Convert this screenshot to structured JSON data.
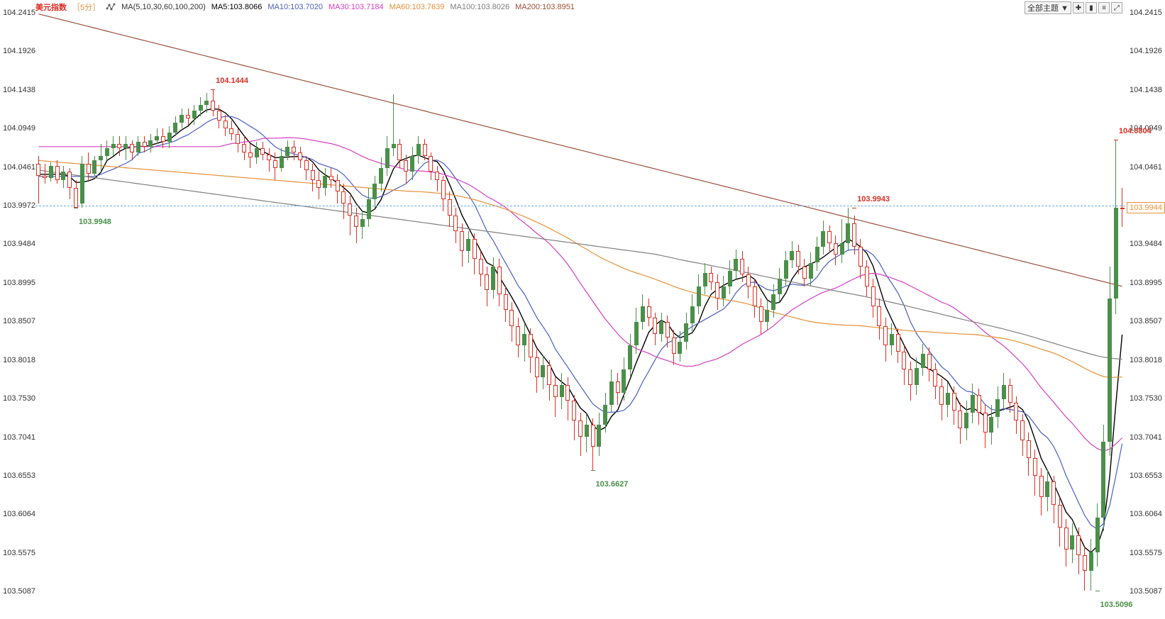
{
  "header": {
    "symbol": "美元指数",
    "timeframe": "［5分］",
    "indicator_set": "MA(5,10,30,60,100,200)",
    "ma5_label": "MA5:103.8066",
    "ma10_label": "MA10:103.7020",
    "ma30_label": "MA30:103.7184",
    "ma60_label": "MA60:103.7639",
    "ma100_label": "MA100:103.8026",
    "ma200_label": "MA200:103.8951"
  },
  "controls": {
    "theme_dropdown": "全部主题 ▼"
  },
  "colors": {
    "ma5": "#000000",
    "ma10": "#4a5fbf",
    "ma30": "#d63fc2",
    "ma60": "#e69138",
    "ma100": "#808080",
    "ma200": "#9b4f3a",
    "up": "#4a8f4a",
    "down": "#d93025",
    "current_dash": "#6aa8d8",
    "current_box_border": "#e69138",
    "current_box_text": "#e69138",
    "bg": "#ffffff"
  },
  "chart": {
    "type": "candlestick",
    "ylim": [
      103.49,
      104.2415
    ],
    "yticks": [
      104.2415,
      104.1926,
      104.1438,
      104.0949,
      104.0461,
      103.9972,
      103.9484,
      103.8995,
      103.8507,
      103.8018,
      103.753,
      103.7041,
      103.6553,
      103.6064,
      103.5575,
      103.5087
    ],
    "current_price": 103.9944,
    "current_dash_y": 103.9972,
    "n_bars": 175,
    "annotations": [
      {
        "text": "104.1444",
        "value": 104.1444,
        "x_index": 28,
        "cls": "red",
        "dy": -18
      },
      {
        "text": "103.9948",
        "value": 103.9948,
        "x_index": 6,
        "cls": "green",
        "dy": 14
      },
      {
        "text": "103.6627",
        "value": 103.6627,
        "x_index": 89,
        "cls": "green",
        "dy": 14
      },
      {
        "text": "103.9943",
        "value": 103.9943,
        "x_index": 131,
        "cls": "red",
        "dy": -18
      },
      {
        "text": "104.0804",
        "value": 104.0804,
        "x_index": 173,
        "cls": "red",
        "dy": -18
      },
      {
        "text": "103.5096",
        "value": 103.5096,
        "x_index": 170,
        "cls": "green",
        "dy": 14
      }
    ]
  },
  "candles": [
    [
      104.05,
      104.035,
      104.06,
      104.0
    ],
    [
      104.035,
      104.032,
      104.05,
      104.025
    ],
    [
      104.032,
      104.048,
      104.052,
      104.028
    ],
    [
      104.048,
      104.03,
      104.055,
      104.025
    ],
    [
      104.03,
      104.04,
      104.048,
      104.02
    ],
    [
      104.04,
      104.02,
      104.045,
      104.005
    ],
    [
      104.02,
      103.995,
      104.03,
      103.9948
    ],
    [
      104.0,
      104.05,
      104.06,
      103.995
    ],
    [
      104.05,
      104.038,
      104.065,
      104.03
    ],
    [
      104.038,
      104.055,
      104.06,
      104.035
    ],
    [
      104.055,
      104.06,
      104.075,
      104.04
    ],
    [
      104.06,
      104.07,
      104.08,
      104.055
    ],
    [
      104.07,
      104.075,
      104.085,
      104.06
    ],
    [
      104.075,
      104.07,
      104.085,
      104.06
    ],
    [
      104.07,
      104.075,
      104.085,
      104.055
    ],
    [
      104.075,
      104.065,
      104.08,
      104.055
    ],
    [
      104.065,
      104.078,
      104.085,
      104.06
    ],
    [
      104.078,
      104.072,
      104.085,
      104.065
    ],
    [
      104.072,
      104.08,
      104.088,
      104.065
    ],
    [
      104.08,
      104.085,
      104.095,
      104.075
    ],
    [
      104.085,
      104.078,
      104.095,
      104.07
    ],
    [
      104.078,
      104.09,
      104.098,
      104.07
    ],
    [
      104.09,
      104.102,
      104.11,
      104.085
    ],
    [
      104.102,
      104.112,
      104.12,
      104.095
    ],
    [
      104.112,
      104.108,
      104.12,
      104.1
    ],
    [
      104.108,
      104.118,
      104.125,
      104.1
    ],
    [
      104.118,
      104.125,
      104.135,
      104.11
    ],
    [
      104.125,
      104.13,
      104.14,
      104.115
    ],
    [
      104.13,
      104.118,
      104.1444,
      104.11
    ],
    [
      104.118,
      104.105,
      104.125,
      104.095
    ],
    [
      104.105,
      104.095,
      104.112,
      104.085
    ],
    [
      104.095,
      104.088,
      104.105,
      104.08
    ],
    [
      104.088,
      104.075,
      104.095,
      104.065
    ],
    [
      104.075,
      104.065,
      104.085,
      104.055
    ],
    [
      104.065,
      104.058,
      104.075,
      104.045
    ],
    [
      104.058,
      104.07,
      104.078,
      104.05
    ],
    [
      104.07,
      104.062,
      104.078,
      104.055
    ],
    [
      104.062,
      104.055,
      104.07,
      104.04
    ],
    [
      104.055,
      104.045,
      104.065,
      104.03
    ],
    [
      104.045,
      104.06,
      104.07,
      104.04
    ],
    [
      104.06,
      104.072,
      104.08,
      104.055
    ],
    [
      104.072,
      104.065,
      104.08,
      104.055
    ],
    [
      104.065,
      104.055,
      104.072,
      104.045
    ],
    [
      104.055,
      104.042,
      104.06,
      104.03
    ],
    [
      104.042,
      104.03,
      104.05,
      104.015
    ],
    [
      104.03,
      104.02,
      104.04,
      104.005
    ],
    [
      104.02,
      104.035,
      104.045,
      104.01
    ],
    [
      104.035,
      104.03,
      104.045,
      104.02
    ],
    [
      104.03,
      104.015,
      104.037,
      104.0
    ],
    [
      104.015,
      104.0,
      104.025,
      103.98
    ],
    [
      104.0,
      103.985,
      104.01,
      103.96
    ],
    [
      103.985,
      103.97,
      103.995,
      103.95
    ],
    [
      103.97,
      103.98,
      103.992,
      103.955
    ],
    [
      103.98,
      104.005,
      104.02,
      103.97
    ],
    [
      104.005,
      104.025,
      104.035,
      103.995
    ],
    [
      104.025,
      104.045,
      104.058,
      104.015
    ],
    [
      104.045,
      104.07,
      104.085,
      104.035
    ],
    [
      104.07,
      104.075,
      104.1378,
      104.06
    ],
    [
      104.075,
      104.055,
      104.082,
      104.045
    ],
    [
      104.055,
      104.04,
      104.062,
      104.025
    ],
    [
      104.04,
      104.06,
      104.072,
      104.03
    ],
    [
      104.06,
      104.075,
      104.085,
      104.05
    ],
    [
      104.075,
      104.06,
      104.082,
      104.055
    ],
    [
      104.06,
      104.04,
      104.065,
      104.03
    ],
    [
      104.04,
      104.03,
      104.048,
      104.015
    ],
    [
      104.03,
      104.005,
      104.035,
      103.99
    ],
    [
      104.005,
      103.985,
      104.015,
      103.97
    ],
    [
      103.985,
      103.965,
      103.995,
      103.95
    ],
    [
      103.965,
      103.94,
      103.975,
      103.92
    ],
    [
      103.94,
      103.955,
      103.965,
      103.925
    ],
    [
      103.955,
      103.93,
      103.962,
      103.91
    ],
    [
      103.93,
      103.91,
      103.94,
      103.895
    ],
    [
      103.91,
      103.89,
      103.92,
      103.87
    ],
    [
      103.89,
      103.92,
      103.932,
      103.88
    ],
    [
      103.92,
      103.885,
      103.93,
      103.87
    ],
    [
      103.885,
      103.865,
      103.895,
      103.85
    ],
    [
      103.865,
      103.845,
      103.875,
      103.825
    ],
    [
      103.845,
      103.82,
      103.855,
      103.805
    ],
    [
      103.82,
      103.835,
      103.848,
      103.8
    ],
    [
      103.835,
      103.805,
      103.842,
      103.785
    ],
    [
      103.805,
      103.78,
      103.815,
      103.76
    ],
    [
      103.78,
      103.795,
      103.808,
      103.765
    ],
    [
      103.795,
      103.77,
      103.802,
      103.75
    ],
    [
      103.77,
      103.755,
      103.78,
      103.73
    ],
    [
      103.755,
      103.77,
      103.785,
      103.74
    ],
    [
      103.77,
      103.75,
      103.78,
      103.725
    ],
    [
      103.75,
      103.725,
      103.758,
      103.7
    ],
    [
      103.725,
      103.705,
      103.735,
      103.68
    ],
    [
      103.705,
      103.72,
      103.734,
      103.685
    ],
    [
      103.72,
      103.692,
      103.728,
      103.6627
    ],
    [
      103.692,
      103.72,
      103.735,
      103.68
    ],
    [
      103.72,
      103.745,
      103.76,
      103.71
    ],
    [
      103.745,
      103.775,
      103.79,
      103.735
    ],
    [
      103.775,
      103.76,
      103.785,
      103.745
    ],
    [
      103.76,
      103.79,
      103.805,
      103.75
    ],
    [
      103.79,
      103.82,
      103.835,
      103.78
    ],
    [
      103.82,
      103.85,
      103.868,
      103.81
    ],
    [
      103.85,
      103.87,
      103.885,
      103.84
    ],
    [
      103.87,
      103.855,
      103.88,
      103.845
    ],
    [
      103.855,
      103.835,
      103.862,
      103.82
    ],
    [
      103.835,
      103.85,
      103.862,
      103.825
    ],
    [
      103.85,
      103.83,
      103.858,
      103.818
    ],
    [
      103.83,
      103.81,
      103.84,
      103.795
    ],
    [
      103.81,
      103.825,
      103.838,
      103.8
    ],
    [
      103.825,
      103.848,
      103.862,
      103.815
    ],
    [
      103.848,
      103.87,
      103.885,
      103.838
    ],
    [
      103.87,
      103.895,
      103.91,
      103.86
    ],
    [
      103.895,
      103.912,
      103.925,
      103.885
    ],
    [
      103.912,
      103.9,
      103.92,
      103.89
    ],
    [
      103.9,
      103.88,
      103.91,
      103.865
    ],
    [
      103.88,
      103.895,
      103.908,
      103.87
    ],
    [
      103.895,
      103.915,
      103.928,
      103.885
    ],
    [
      103.915,
      103.93,
      103.942,
      103.905
    ],
    [
      103.93,
      103.91,
      103.94,
      103.9
    ],
    [
      103.91,
      103.895,
      103.92,
      103.88
    ],
    [
      103.895,
      103.87,
      103.905,
      103.855
    ],
    [
      103.87,
      103.85,
      103.88,
      103.835
    ],
    [
      103.85,
      103.865,
      103.878,
      103.84
    ],
    [
      103.865,
      103.885,
      103.898,
      103.855
    ],
    [
      103.885,
      103.905,
      103.918,
      103.875
    ],
    [
      103.905,
      103.928,
      103.94,
      103.895
    ],
    [
      103.928,
      103.94,
      103.952,
      103.918
    ],
    [
      103.94,
      103.92,
      103.948,
      103.91
    ],
    [
      103.92,
      103.905,
      103.93,
      103.895
    ],
    [
      103.905,
      103.925,
      103.938,
      103.895
    ],
    [
      103.925,
      103.945,
      103.958,
      103.915
    ],
    [
      103.945,
      103.965,
      103.978,
      103.935
    ],
    [
      103.965,
      103.95,
      103.972,
      103.938
    ],
    [
      103.95,
      103.935,
      103.96,
      103.922
    ],
    [
      103.935,
      103.95,
      103.98,
      103.925
    ],
    [
      103.95,
      103.975,
      103.9943,
      103.94
    ],
    [
      103.975,
      103.945,
      103.985,
      103.935
    ],
    [
      103.945,
      103.92,
      103.955,
      103.905
    ],
    [
      103.92,
      103.895,
      103.928,
      103.882
    ],
    [
      103.895,
      103.87,
      103.905,
      103.855
    ],
    [
      103.87,
      103.845,
      103.88,
      103.828
    ],
    [
      103.845,
      103.82,
      103.855,
      103.8
    ],
    [
      103.82,
      103.835,
      103.848,
      103.808
    ],
    [
      103.835,
      103.812,
      103.842,
      103.798
    ],
    [
      103.812,
      103.79,
      103.82,
      103.77
    ],
    [
      103.79,
      103.77,
      103.8,
      103.75
    ],
    [
      103.77,
      103.792,
      103.805,
      103.758
    ],
    [
      103.792,
      103.81,
      103.822,
      103.782
    ],
    [
      103.81,
      103.79,
      103.818,
      103.775
    ],
    [
      103.79,
      103.768,
      103.798,
      103.752
    ],
    [
      103.768,
      103.745,
      103.778,
      103.725
    ],
    [
      103.745,
      103.76,
      103.774,
      103.73
    ],
    [
      103.76,
      103.738,
      103.768,
      103.72
    ],
    [
      103.738,
      103.715,
      103.748,
      103.696
    ],
    [
      103.715,
      103.735,
      103.75,
      103.7
    ],
    [
      103.735,
      103.758,
      103.772,
      103.722
    ],
    [
      103.758,
      103.735,
      103.766,
      103.72
    ],
    [
      103.735,
      103.71,
      103.745,
      103.69
    ],
    [
      103.71,
      103.73,
      103.745,
      103.695
    ],
    [
      103.73,
      103.752,
      103.768,
      103.715
    ],
    [
      103.752,
      103.77,
      103.785,
      103.738
    ],
    [
      103.77,
      103.748,
      103.778,
      103.735
    ],
    [
      103.748,
      103.725,
      103.756,
      103.708
    ],
    [
      103.725,
      103.7,
      103.733,
      103.68
    ],
    [
      103.7,
      103.678,
      103.71,
      103.655
    ],
    [
      103.678,
      103.655,
      103.688,
      103.63
    ],
    [
      103.655,
      103.628,
      103.665,
      103.605
    ],
    [
      103.628,
      103.648,
      103.662,
      103.61
    ],
    [
      103.648,
      103.618,
      103.655,
      103.595
    ],
    [
      103.618,
      103.59,
      103.628,
      103.565
    ],
    [
      103.59,
      103.562,
      103.6,
      103.54
    ],
    [
      103.562,
      103.58,
      103.595,
      103.545
    ],
    [
      103.58,
      103.555,
      103.59,
      103.53
    ],
    [
      103.555,
      103.535,
      103.565,
      103.51
    ],
    [
      103.535,
      103.558,
      103.575,
      103.5096
    ],
    [
      103.558,
      103.602,
      103.62,
      103.54
    ],
    [
      103.602,
      103.698,
      103.72,
      103.585
    ],
    [
      103.698,
      103.88,
      103.92,
      103.68
    ],
    [
      103.88,
      103.995,
      104.0804,
      103.86
    ],
    [
      103.995,
      103.9944,
      104.02,
      103.97
    ]
  ],
  "ma_sets": [
    "ma5",
    "ma10",
    "ma30",
    "ma60",
    "ma100",
    "ma200"
  ]
}
